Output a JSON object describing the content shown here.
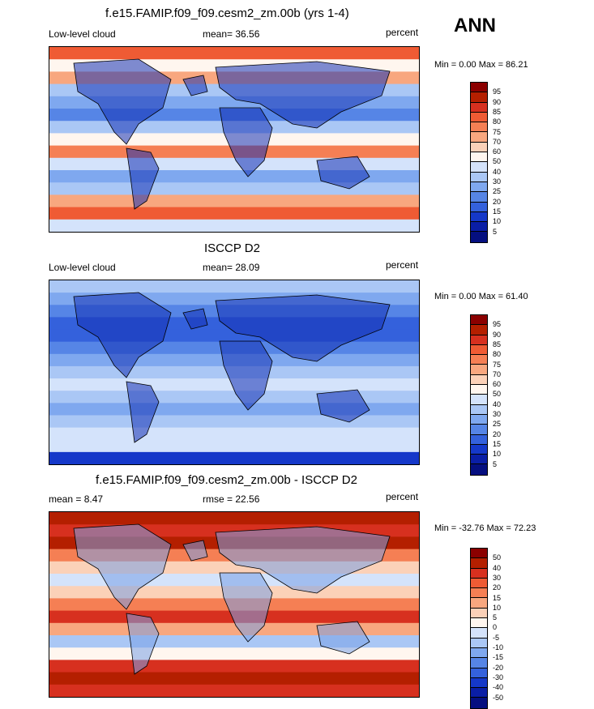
{
  "season": "ANN",
  "colors": {
    "pos_scale": [
      "#8b0000",
      "#b41f00",
      "#d7301f",
      "#ef5b34",
      "#f57f54",
      "#f8a77f",
      "#fbd1b8",
      "#fff6ef",
      "#d4e3fb",
      "#aac7f5",
      "#7fa8ef",
      "#5685e6",
      "#3461dc",
      "#1538c9",
      "#0a1ea6",
      "#050f80"
    ],
    "diff_scale": [
      "#8b0000",
      "#b41f00",
      "#d7301f",
      "#ef5b34",
      "#f57f54",
      "#f8a77f",
      "#fbd1b8",
      "#fff6ef",
      "#d4e3fb",
      "#aac7f5",
      "#7fa8ef",
      "#5685e6",
      "#3461dc",
      "#1538c9",
      "#0a1ea6",
      "#050f80"
    ]
  },
  "panels": [
    {
      "title": "f.e15.FAMIP.f09_f09.cesm2_zm.00b (yrs 1-4)",
      "left_label": "Low-level cloud",
      "mean_text": "mean=  36.56",
      "units": "percent",
      "minmax": "Min =    0.00 Max =   86.21",
      "colorbar_labels": [
        "95",
        "90",
        "85",
        "80",
        "75",
        "70",
        "60",
        "50",
        "40",
        "30",
        "25",
        "20",
        "15",
        "10",
        "5"
      ]
    },
    {
      "title": "ISCCP D2",
      "left_label": "Low-level cloud",
      "mean_text": "mean=  28.09",
      "units": "percent",
      "minmax": "Min =    0.00 Max =   61.40",
      "colorbar_labels": [
        "95",
        "90",
        "85",
        "80",
        "75",
        "70",
        "60",
        "50",
        "40",
        "30",
        "25",
        "20",
        "15",
        "10",
        "5"
      ]
    },
    {
      "title": "f.e15.FAMIP.f09_f09.cesm2_zm.00b - ISCCP D2",
      "left_label": "mean =   8.47",
      "mean_text": "rmse =  22.56",
      "units": "percent",
      "minmax": "Min = -32.76 Max =  72.23",
      "colorbar_labels": [
        "50",
        "40",
        "30",
        "20",
        "15",
        "10",
        "5",
        "0",
        "-5",
        "-10",
        "-15",
        "-20",
        "-30",
        "-40",
        "-50"
      ]
    }
  ],
  "chart_data": [
    {
      "type": "heatmap",
      "title": "f.e15.FAMIP.f09_f09.cesm2_zm.00b (yrs 1-4)",
      "variable": "Low-level cloud",
      "units": "percent",
      "mean": 36.56,
      "min": 0.0,
      "max": 86.21,
      "levels": [
        5,
        10,
        15,
        20,
        25,
        30,
        40,
        50,
        60,
        70,
        75,
        80,
        85,
        90,
        95
      ],
      "lat_band_values": [
        80,
        55,
        70,
        35,
        25,
        20,
        30,
        50,
        75,
        45,
        25,
        35,
        70,
        80,
        40
      ]
    },
    {
      "type": "heatmap",
      "title": "ISCCP D2",
      "variable": "Low-level cloud",
      "units": "percent",
      "mean": 28.09,
      "min": 0.0,
      "max": 61.4,
      "levels": [
        5,
        10,
        15,
        20,
        25,
        30,
        40,
        50,
        60,
        70,
        75,
        80,
        85,
        90,
        95
      ],
      "lat_band_values": [
        30,
        25,
        20,
        15,
        15,
        20,
        25,
        35,
        40,
        30,
        25,
        35,
        40,
        45,
        10
      ]
    },
    {
      "type": "heatmap",
      "title": "f.e15.FAMIP.f09_f09.cesm2_zm.00b - ISCCP D2",
      "units": "percent",
      "mean": 8.47,
      "rmse": 22.56,
      "min": -32.76,
      "max": 72.23,
      "levels": [
        -50,
        -40,
        -30,
        -20,
        -15,
        -10,
        -5,
        0,
        5,
        10,
        15,
        20,
        30,
        40,
        50
      ],
      "lat_band_values": [
        45,
        30,
        40,
        15,
        5,
        -5,
        5,
        15,
        30,
        10,
        -10,
        0,
        30,
        40,
        35
      ]
    }
  ]
}
